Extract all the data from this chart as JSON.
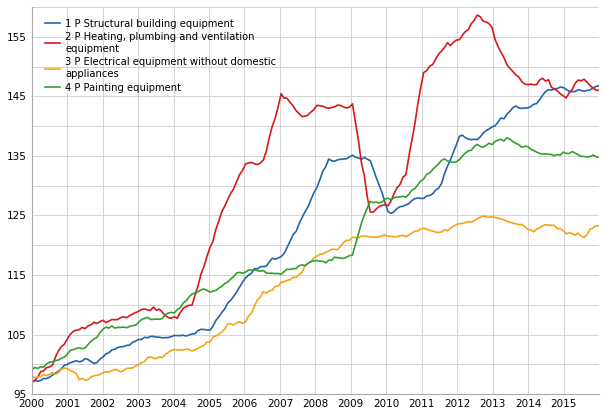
{
  "title": "",
  "xlabel": "",
  "ylabel": "",
  "ylim": [
    95,
    160
  ],
  "xlim": [
    2000.0,
    2016.0
  ],
  "yticks": [
    95,
    100,
    105,
    110,
    115,
    120,
    125,
    130,
    135,
    140,
    145,
    150,
    155,
    160
  ],
  "ytick_labels": [
    "95",
    "",
    "105",
    "",
    "115",
    "",
    "125",
    "",
    "135",
    "",
    "145",
    "",
    "155",
    ""
  ],
  "xtick_years": [
    2000,
    2001,
    2002,
    2003,
    2004,
    2005,
    2006,
    2007,
    2008,
    2009,
    2010,
    2011,
    2012,
    2013,
    2014,
    2015
  ],
  "series": {
    "1P": {
      "label": "1 P Structural building equipment",
      "color": "#2166ac"
    },
    "2P": {
      "label": "2 P Heating, plumbing and ventilation\nequipment",
      "color": "#d6191b"
    },
    "3P": {
      "label": "3 P Electrical equipment without domestic\nappliances",
      "color": "#f5a418"
    },
    "4P": {
      "label": "4 P Painting equipment",
      "color": "#33a02c"
    }
  },
  "background_color": "#ffffff",
  "grid_color": "#cccccc",
  "linewidth": 1.2
}
